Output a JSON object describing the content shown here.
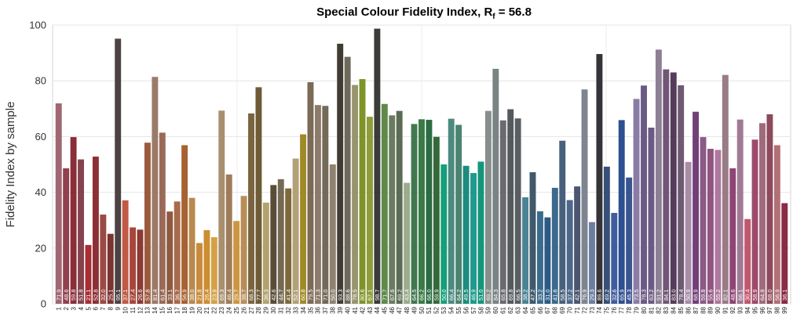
{
  "chart_data": {
    "type": "bar",
    "title": "Special Colour Fidelity Index, R",
    "title_subscript": "f",
    "title_value": " = 56.8",
    "xlabel": "",
    "ylabel": "Fidelity Index by sample",
    "ylim": [
      0,
      100
    ],
    "yticks": [
      0,
      20,
      40,
      60,
      80,
      100
    ],
    "grid": true,
    "categories": [
      "1",
      "2",
      "3",
      "4",
      "5",
      "6",
      "7",
      "8",
      "9",
      "10",
      "11",
      "12",
      "13",
      "14",
      "15",
      "16",
      "17",
      "18",
      "19",
      "20",
      "21",
      "22",
      "23",
      "24",
      "25",
      "26",
      "27",
      "28",
      "29",
      "30",
      "31",
      "32",
      "33",
      "34",
      "35",
      "36",
      "37",
      "38",
      "39",
      "40",
      "41",
      "42",
      "43",
      "44",
      "45",
      "46",
      "47",
      "48",
      "49",
      "50",
      "51",
      "52",
      "53",
      "54",
      "55",
      "56",
      "57",
      "58",
      "59",
      "60",
      "61",
      "62",
      "63",
      "64",
      "65",
      "66",
      "67",
      "68",
      "69",
      "70",
      "71",
      "72",
      "73",
      "74",
      "75",
      "76",
      "77",
      "78",
      "79",
      "80",
      "81",
      "82",
      "83",
      "84",
      "85",
      "86",
      "87",
      "88",
      "89",
      "90",
      "91",
      "92",
      "93",
      "94",
      "95",
      "96",
      "97",
      "98",
      "99"
    ],
    "values": [
      71.9,
      48.6,
      59.8,
      51.8,
      21.1,
      52.8,
      32.0,
      25.1,
      95.1,
      37.1,
      27.4,
      26.6,
      57.8,
      81.4,
      61.4,
      33.1,
      36.7,
      56.9,
      38.0,
      21.8,
      26.4,
      23.9,
      69.3,
      46.4,
      29.7,
      38.7,
      68.3,
      77.7,
      36.3,
      42.6,
      44.7,
      41.4,
      52.1,
      60.8,
      79.5,
      71.3,
      71.0,
      50.0,
      93.3,
      88.6,
      78.5,
      80.6,
      67.1,
      98.7,
      71.7,
      67.6,
      69.2,
      43.4,
      64.5,
      66.2,
      66.0,
      59.9,
      50.0,
      66.4,
      64.2,
      49.5,
      46.9,
      51.0,
      69.2,
      84.3,
      65.8,
      69.8,
      66.5,
      38.2,
      47.2,
      33.2,
      31.0,
      41.6,
      58.5,
      37.2,
      42.1,
      76.9,
      29.3,
      89.6,
      49.2,
      32.6,
      65.9,
      45.3,
      73.5,
      78.3,
      63.2,
      91.2,
      84.1,
      83.0,
      78.4,
      50.9,
      68.9,
      59.8,
      55.6,
      55.2,
      82.1,
      48.6,
      66.1,
      30.4,
      58.9,
      64.8,
      68.0,
      56.9,
      36.1
    ],
    "colors": [
      "#a06672",
      "#93404f",
      "#8a2e39",
      "#84444d",
      "#a82e34",
      "#8c3036",
      "#9a4a44",
      "#7a3432",
      "#4c4242",
      "#c05a44",
      "#a8463c",
      "#8c3a32",
      "#9c5a3c",
      "#9c7a6a",
      "#9a6a58",
      "#8e5a40",
      "#a86a4a",
      "#a66232",
      "#b88a4e",
      "#c88a3c",
      "#cc8e30",
      "#d6a046",
      "#a8906e",
      "#9e7c5a",
      "#cc9640",
      "#b88e58",
      "#7a6440",
      "#6e5c38",
      "#b4a26c",
      "#5a4c36",
      "#746a54",
      "#7c6a3c",
      "#b2a078",
      "#a08a26",
      "#7a6a56",
      "#8c7a6a",
      "#746a58",
      "#8e8270",
      "#403c34",
      "#6e6a5a",
      "#989470",
      "#7e9428",
      "#8e9c3a",
      "#3a3c38",
      "#5e8a4a",
      "#6a7c60",
      "#5c6c54",
      "#9aac8c",
      "#427850",
      "#3a7a46",
      "#2c6c42",
      "#346a3a",
      "#14a07a",
      "#4c8a80",
      "#4a8470",
      "#1c8c7e",
      "#1e9a8e",
      "#14967c",
      "#888e8c",
      "#7a8484",
      "#6a6a70",
      "#525a5c",
      "#585e62",
      "#4a8494",
      "#405a6c",
      "#3a6c8c",
      "#2c5a84",
      "#3c6a8c",
      "#48607c",
      "#4c688a",
      "#4c5670",
      "#7e8490",
      "#6c7ea0",
      "#343438",
      "#385078",
      "#405c9c",
      "#2c5090",
      "#3a5490",
      "#8a7ca4",
      "#6a5a86",
      "#6a5a84",
      "#8e8094",
      "#725678",
      "#543c5a",
      "#6e5a72",
      "#a88ca8",
      "#723e78",
      "#8c5a86",
      "#90547e",
      "#b0789e",
      "#9a7c86",
      "#8e4474",
      "#a07a94",
      "#c2566e",
      "#9e4a6a",
      "#a06a7c",
      "#8e4a5c",
      "#b07076",
      "#8a2c46"
    ]
  }
}
